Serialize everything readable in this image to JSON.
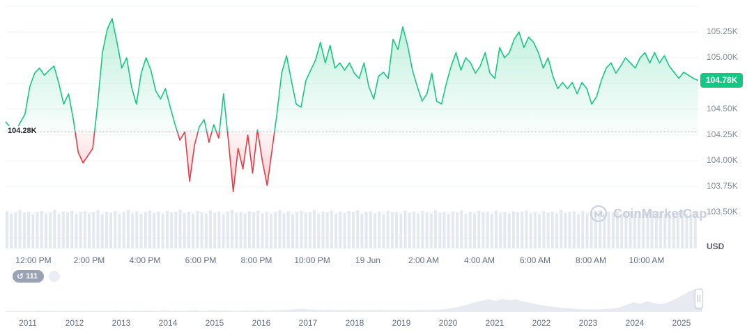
{
  "app": {
    "watermark": "CoinMarketCap"
  },
  "controls": {
    "history_count": "111"
  },
  "colors": {
    "green": "#16c784",
    "red": "#ea3943",
    "gridline": "#eef1f6",
    "axis_text": "#808a9d",
    "label_text": "#616e85",
    "volume_bar": "#e4e9f0",
    "timeline_area": "#e7ebf1",
    "baseline_dots": "#9aa5b8",
    "watermark": "#c8cfdd"
  },
  "chart_data": {
    "type": "area",
    "title": "",
    "unit": "USD",
    "ylim": [
      103.25,
      105.5
    ],
    "grid": true,
    "baseline": {
      "value": 104.28,
      "label": "104.28K"
    },
    "current": {
      "value": 104.78,
      "label": "104.78K"
    },
    "y_ticks": [
      {
        "value": 105.25,
        "label": "105.25K"
      },
      {
        "value": 105.0,
        "label": "105.00K"
      },
      {
        "value": 104.5,
        "label": "104.50K"
      },
      {
        "value": 104.25,
        "label": "104.25K"
      },
      {
        "value": 104.0,
        "label": "104.00K"
      },
      {
        "value": 103.75,
        "label": "103.75K"
      },
      {
        "value": 103.5,
        "label": "103.50K"
      }
    ],
    "x_ticks": [
      {
        "label": "12:00 PM",
        "f": 0.0402
      },
      {
        "label": "2:00 PM",
        "f": 0.1207
      },
      {
        "label": "4:00 PM",
        "f": 0.2012
      },
      {
        "label": "6:00 PM",
        "f": 0.2817
      },
      {
        "label": "8:00 PM",
        "f": 0.3622
      },
      {
        "label": "10:00 PM",
        "f": 0.4427
      },
      {
        "label": "19 Jun",
        "f": 0.5231
      },
      {
        "label": "2:00 AM",
        "f": 0.6036
      },
      {
        "label": "4:00 AM",
        "f": 0.6841
      },
      {
        "label": "6:00 AM",
        "f": 0.7646
      },
      {
        "label": "8:00 AM",
        "f": 0.8451
      },
      {
        "label": "10:00 AM",
        "f": 0.9256
      }
    ],
    "prices": [
      104.38,
      104.32,
      104.28,
      104.37,
      104.45,
      104.72,
      104.85,
      104.9,
      104.83,
      104.88,
      104.92,
      104.75,
      104.55,
      104.65,
      104.4,
      104.08,
      103.98,
      104.05,
      104.12,
      104.55,
      105.05,
      105.28,
      105.38,
      105.15,
      104.9,
      105.0,
      104.72,
      104.55,
      104.85,
      105.0,
      104.88,
      104.68,
      104.6,
      104.7,
      104.52,
      104.35,
      104.2,
      104.28,
      103.8,
      104.15,
      104.33,
      104.4,
      104.18,
      104.35,
      104.22,
      104.65,
      104.2,
      103.7,
      104.12,
      103.92,
      104.25,
      103.88,
      104.3,
      104.0,
      103.76,
      104.1,
      104.45,
      104.85,
      105.02,
      104.78,
      104.55,
      104.52,
      104.78,
      104.88,
      104.98,
      105.15,
      104.95,
      105.12,
      104.9,
      104.95,
      104.88,
      104.95,
      104.85,
      104.8,
      104.95,
      104.72,
      104.6,
      104.82,
      104.86,
      104.8,
      105.18,
      105.08,
      105.3,
      105.12,
      104.88,
      104.72,
      104.58,
      104.65,
      104.85,
      104.58,
      104.55,
      104.75,
      104.92,
      105.05,
      104.88,
      105.0,
      104.95,
      104.85,
      104.92,
      105.05,
      104.85,
      104.8,
      105.1,
      105.0,
      105.05,
      105.18,
      105.25,
      105.1,
      105.2,
      105.15,
      105.05,
      104.9,
      105.0,
      104.82,
      104.7,
      104.76,
      104.7,
      104.76,
      104.65,
      104.76,
      104.7,
      104.55,
      104.62,
      104.78,
      104.9,
      104.95,
      104.85,
      104.92,
      105.0,
      104.95,
      104.9,
      105.0,
      105.05,
      104.95,
      105.05,
      104.95,
      105.02,
      104.92,
      104.86,
      104.8,
      104.86,
      104.83,
      104.8,
      104.78
    ],
    "volume": [
      0.72,
      0.58,
      0.65,
      0.8,
      0.62,
      0.7,
      0.55,
      0.68,
      0.75,
      0.6,
      0.66,
      0.82,
      0.58,
      0.71,
      0.64,
      0.77,
      0.59,
      0.69,
      0.73,
      0.61,
      0.67,
      0.79,
      0.56,
      0.7,
      0.63,
      0.74,
      0.58,
      0.68,
      0.81,
      0.6,
      0.72,
      0.57,
      0.66,
      0.78,
      0.62,
      0.7,
      0.59,
      0.75,
      0.64,
      0.69,
      0.83,
      0.61,
      0.7,
      0.57,
      0.74,
      0.66,
      0.59,
      0.78,
      0.63,
      0.71,
      0.56,
      0.69,
      0.8,
      0.62,
      0.68,
      0.58,
      0.73,
      0.65,
      0.77,
      0.6,
      0.7,
      0.58,
      0.66,
      0.79,
      0.61,
      0.72,
      0.57,
      0.69,
      0.75,
      0.63,
      0.68,
      0.81,
      0.59,
      0.71,
      0.64,
      0.76,
      0.58,
      0.7,
      0.62,
      0.74,
      0.66,
      0.8,
      0.57,
      0.69,
      0.73,
      0.6,
      0.7,
      0.56,
      0.75,
      0.64,
      0.68,
      0.58,
      0.78,
      0.62,
      0.71,
      0.59,
      0.74,
      0.66,
      0.61,
      0.79,
      0.63,
      0.7,
      0.57,
      0.72,
      0.66,
      0.8,
      0.58,
      0.69,
      0.61,
      0.75,
      0.64,
      0.7,
      0.56,
      0.77,
      0.62,
      0.68,
      0.59,
      0.73,
      0.65,
      0.71,
      0.78,
      0.6,
      0.69,
      0.57,
      0.74,
      0.63,
      0.7,
      0.58,
      0.8,
      0.62,
      0.67,
      0.72,
      0.56,
      0.76,
      0.61,
      0.69,
      0.64,
      0.79,
      0.58,
      0.7,
      0.62,
      0.73,
      0.57,
      0.68,
      0.75,
      0.6,
      0.71,
      0.58,
      0.66,
      0.78,
      0.61,
      0.7,
      0.56,
      0.74,
      0.63,
      0.69,
      0.8,
      0.59,
      0.67,
      0.72
    ],
    "timeline": {
      "years": [
        "2011",
        "2012",
        "2013",
        "2014",
        "2015",
        "2016",
        "2017",
        "2018",
        "2019",
        "2020",
        "2021",
        "2022",
        "2023",
        "2024",
        "2025"
      ],
      "values": [
        0.03,
        0.03,
        0.03,
        0.04,
        0.03,
        0.05,
        0.03,
        0.04,
        0.03,
        0.04,
        0.05,
        0.03,
        0.04,
        0.05,
        0.03,
        0.04,
        0.05,
        0.04,
        0.03,
        0.05,
        0.04,
        0.05,
        0.04,
        0.06,
        0.04,
        0.05,
        0.04,
        0.06,
        0.05,
        0.04,
        0.06,
        0.05,
        0.06,
        0.04,
        0.05,
        0.06,
        0.05,
        0.06,
        0.05,
        0.07,
        0.06,
        0.08,
        0.1,
        0.12,
        0.09,
        0.08,
        0.07,
        0.08,
        0.06,
        0.07,
        0.08,
        0.06,
        0.07,
        0.06,
        0.08,
        0.06,
        0.07,
        0.06,
        0.07,
        0.06,
        0.08,
        0.07,
        0.08,
        0.09,
        0.12,
        0.16,
        0.22,
        0.3,
        0.38,
        0.44,
        0.5,
        0.44,
        0.52,
        0.46,
        0.5,
        0.42,
        0.36,
        0.3,
        0.26,
        0.22,
        0.18,
        0.15,
        0.13,
        0.11,
        0.1,
        0.09,
        0.1,
        0.11,
        0.13,
        0.18,
        0.28,
        0.38,
        0.32,
        0.42,
        0.35,
        0.3,
        0.38,
        0.5,
        0.65,
        0.8,
        0.92,
        0.95
      ]
    }
  }
}
